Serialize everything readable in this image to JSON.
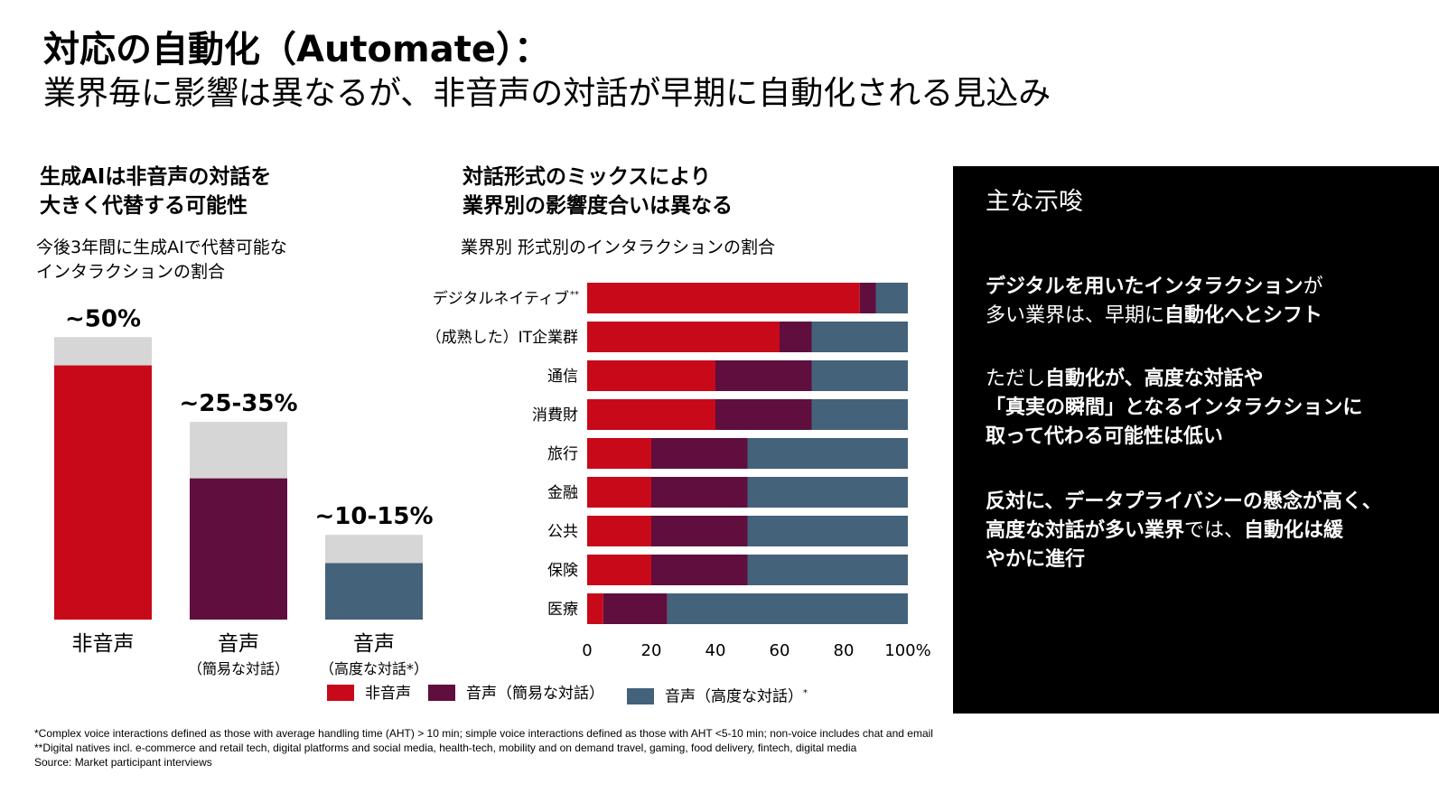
{
  "title": {
    "line1": "対応の自動化（Automate）：",
    "line2": "業界毎に影響は異なるが、非音声の対話が早期に自動化される見込み"
  },
  "left": {
    "heading_line1": "生成AIは非音声の対話を",
    "heading_line2": "大きく代替する可能性",
    "subheading_line1": "今後3年間に生成AIで代替可能な",
    "subheading_line2": "インタラクションの割合"
  },
  "middle": {
    "heading_line1": "対話形式のミックスにより",
    "heading_line2": "業界別の影響度合いは異なる",
    "subheading": "業界別 形式別のインタラクションの割合"
  },
  "legend": {
    "nonvoice": "非音声",
    "simple": "音声（簡易な対話）",
    "complex": "音声（高度な対話）",
    "complex_mark": "*"
  },
  "side_panel": {
    "title": "主な示唆",
    "p1": {
      "l1_bold": "デジタルを用いたインタラクション",
      "l1_normal": "が",
      "l2_normal": "多い業界は、早期に",
      "l2_bold": "自動化へとシフト"
    },
    "p2": {
      "l1_normal": "ただし",
      "l1_bold": "自動化が、高度な対話や",
      "l2_bold": "「真実の瞬間」となるインタラクションに",
      "l3_bold": "取って代わる可能性は低い"
    },
    "p3": {
      "l1_bold": "反対に、データプライバシーの懸念が高く、",
      "l2_bold": "高度な対話が多い業界",
      "l2_normal": "では、",
      "l2_bold2": "自動化は緩",
      "l3_bold": "やかに進行"
    }
  },
  "footnotes": {
    "f1": "*Complex voice interactions defined as those with average handling time (AHT) > 10 min; simple voice interactions defined as those with AHT <5-10 min; non-voice includes chat and email",
    "f2": "**Digital natives incl. e-commerce and retail tech, digital platforms and social media, health-tech, mobility and on demand travel, gaming, food delivery, fintech, digital media",
    "f3": "Source: Market participant interviews"
  },
  "colors": {
    "nonvoice": "#C8091A",
    "simple": "#5F0E3E",
    "complex": "#44627A",
    "range": "#D6D6D6"
  },
  "chart_data": [
    {
      "type": "bar",
      "categories": [
        {
          "label": "非音声",
          "sublabel": ""
        },
        {
          "label": "音声",
          "sublabel": "（簡易な対話）"
        },
        {
          "label": "音声",
          "sublabel": "（高度な対話*）"
        }
      ],
      "range_labels": [
        "~50%",
        "~25-35%",
        "~10-15%"
      ],
      "values_low": [
        45,
        25,
        10
      ],
      "values_high": [
        50,
        35,
        15
      ],
      "bar_colors": [
        "#C8091A",
        "#5F0E3E",
        "#44627A"
      ],
      "ylim": [
        0,
        55
      ]
    },
    {
      "type": "bar",
      "orientation": "horizontal",
      "stacked": true,
      "categories": [
        "デジタルネイティブ",
        "（成熟した）IT企業群",
        "通信",
        "消費財",
        "旅行",
        "金融",
        "公共",
        "保険",
        "医療"
      ],
      "category_marks": [
        "**",
        "",
        "",
        "",
        "",
        "",
        "",
        "",
        ""
      ],
      "series": [
        {
          "name": "非音声",
          "values": [
            85,
            60,
            40,
            40,
            20,
            20,
            20,
            20,
            5
          ]
        },
        {
          "name": "音声（簡易な対話）",
          "values": [
            5,
            10,
            30,
            30,
            30,
            30,
            30,
            30,
            20
          ]
        },
        {
          "name": "音声（高度な対話）*",
          "values": [
            10,
            30,
            30,
            30,
            50,
            50,
            50,
            50,
            75
          ]
        }
      ],
      "xlim": [
        0,
        100
      ],
      "xticks": [
        "0",
        "20",
        "40",
        "60",
        "80",
        "100%"
      ]
    }
  ]
}
